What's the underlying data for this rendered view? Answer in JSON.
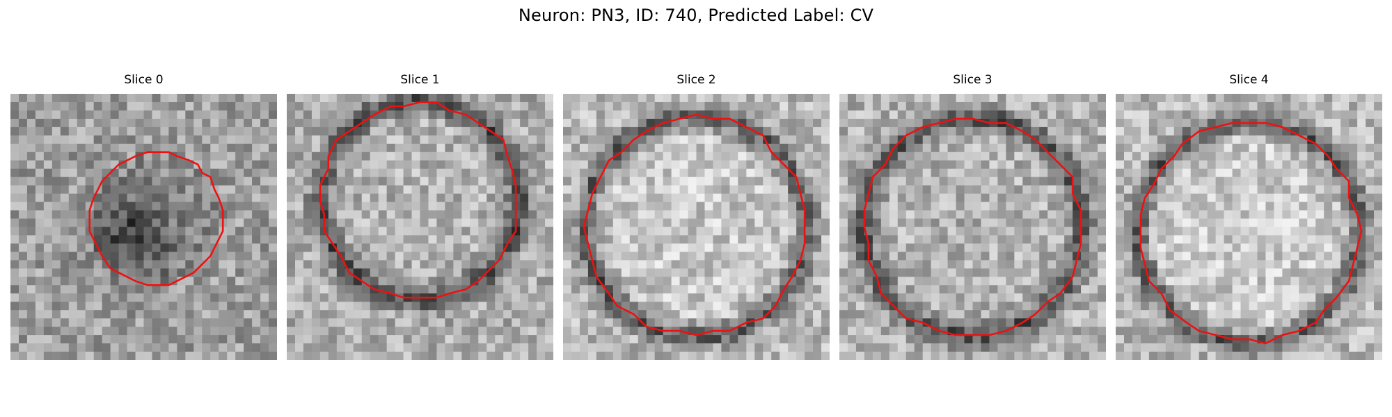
{
  "figure": {
    "title": "Neuron: PN3, ID: 740, Predicted Label: CV"
  },
  "colors": {
    "contour": "#ee1111",
    "background": "#ffffff"
  },
  "panels": [
    {
      "title": "Slice 0",
      "center": [
        0.55,
        0.47
      ],
      "radius": 0.25,
      "dark_ring": false,
      "inside_mean": 0.55,
      "outside_mean": 0.62
    },
    {
      "title": "Slice 1",
      "center": [
        0.5,
        0.4
      ],
      "radius": 0.37,
      "dark_ring": true,
      "inside_mean": 0.7,
      "outside_mean": 0.68
    },
    {
      "title": "Slice 2",
      "center": [
        0.5,
        0.5
      ],
      "radius": 0.41,
      "dark_ring": true,
      "inside_mean": 0.78,
      "outside_mean": 0.72
    },
    {
      "title": "Slice 3",
      "center": [
        0.5,
        0.5
      ],
      "radius": 0.41,
      "dark_ring": true,
      "inside_mean": 0.7,
      "outside_mean": 0.7
    },
    {
      "title": "Slice 4",
      "center": [
        0.5,
        0.52
      ],
      "radius": 0.41,
      "dark_ring": true,
      "inside_mean": 0.8,
      "outside_mean": 0.72
    }
  ]
}
